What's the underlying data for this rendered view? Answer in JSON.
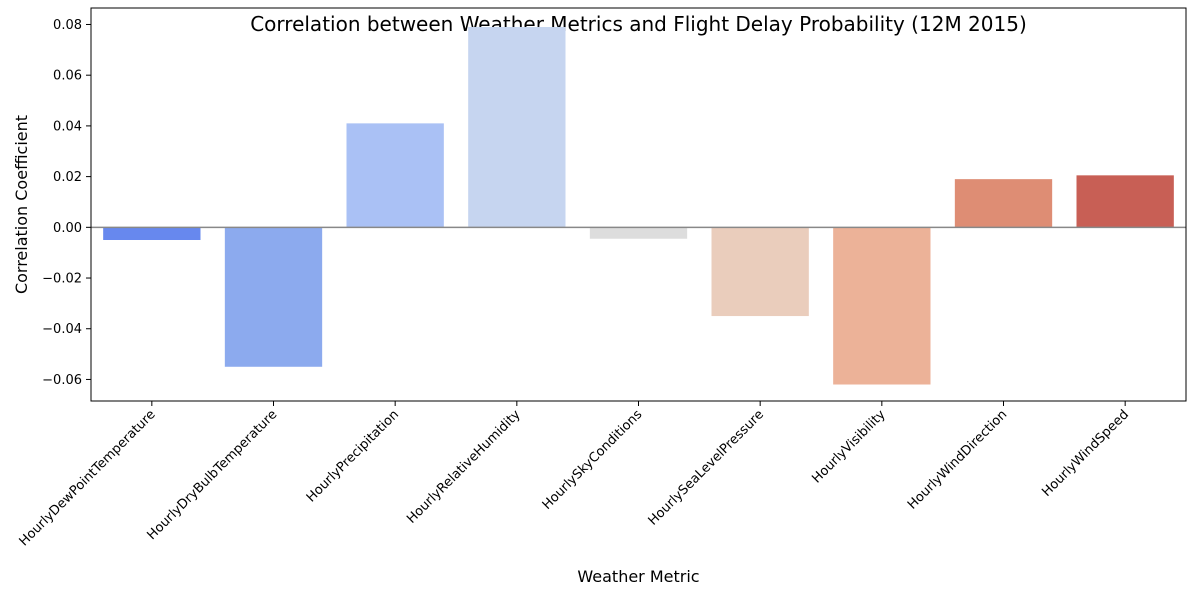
{
  "chart_data": {
    "type": "bar",
    "title": "Correlation between Weather Metrics and Flight Delay Probability (12M 2015)",
    "xlabel": "Weather Metric",
    "ylabel": "Correlation Coefficient",
    "categories": [
      "HourlyDewPointTemperature",
      "HourlyDryBulbTemperature",
      "HourlyPrecipitation",
      "HourlyRelativeHumidity",
      "HourlySkyConditions",
      "HourlySeaLevelPressure",
      "HourlyVisibility",
      "HourlyWindDirection",
      "HourlyWindSpeed"
    ],
    "values": [
      -0.005,
      -0.055,
      0.041,
      0.079,
      -0.0045,
      -0.035,
      -0.062,
      0.019,
      0.0205
    ],
    "colors": [
      "#6788ee",
      "#8caaee",
      "#aac1f5",
      "#c6d5f0",
      "#dddddd",
      "#eacdbc",
      "#ecb298",
      "#de8d74",
      "#c85f55"
    ],
    "ylim": [
      -0.0685,
      0.0865
    ],
    "yticks": [
      -0.06,
      -0.04,
      -0.02,
      0.0,
      0.02,
      0.04,
      0.06,
      0.08
    ],
    "ytick_labels": [
      "−0.06",
      "−0.04",
      "−0.02",
      "0.00",
      "0.02",
      "0.04",
      "0.06",
      "0.08"
    ],
    "zero_line": true,
    "grid": false,
    "legend": "none"
  }
}
